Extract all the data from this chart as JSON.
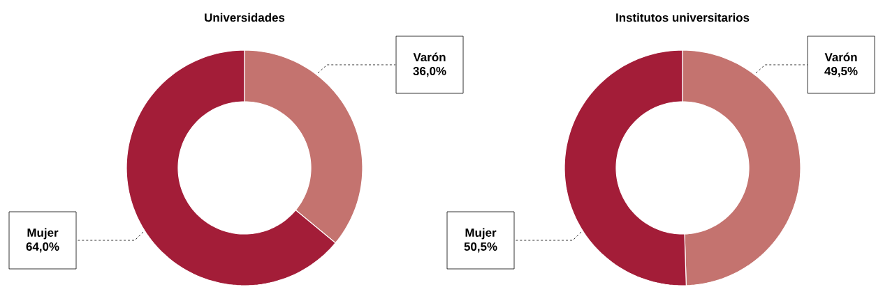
{
  "chart_data": [
    {
      "type": "donut",
      "title": "Universidades",
      "categories": [
        "Varón",
        "Mujer"
      ],
      "values": [
        36.0,
        64.0
      ],
      "colors": [
        "#c4736f",
        "#a31d38"
      ],
      "value_labels": [
        "36,0%",
        "64,0%"
      ]
    },
    {
      "type": "donut",
      "title": "Institutos universitarios",
      "categories": [
        "Varón",
        "Mujer"
      ],
      "values": [
        49.5,
        50.5
      ],
      "colors": [
        "#c4736f",
        "#a31d38"
      ],
      "value_labels": [
        "49,5%",
        "50,5%"
      ]
    }
  ]
}
